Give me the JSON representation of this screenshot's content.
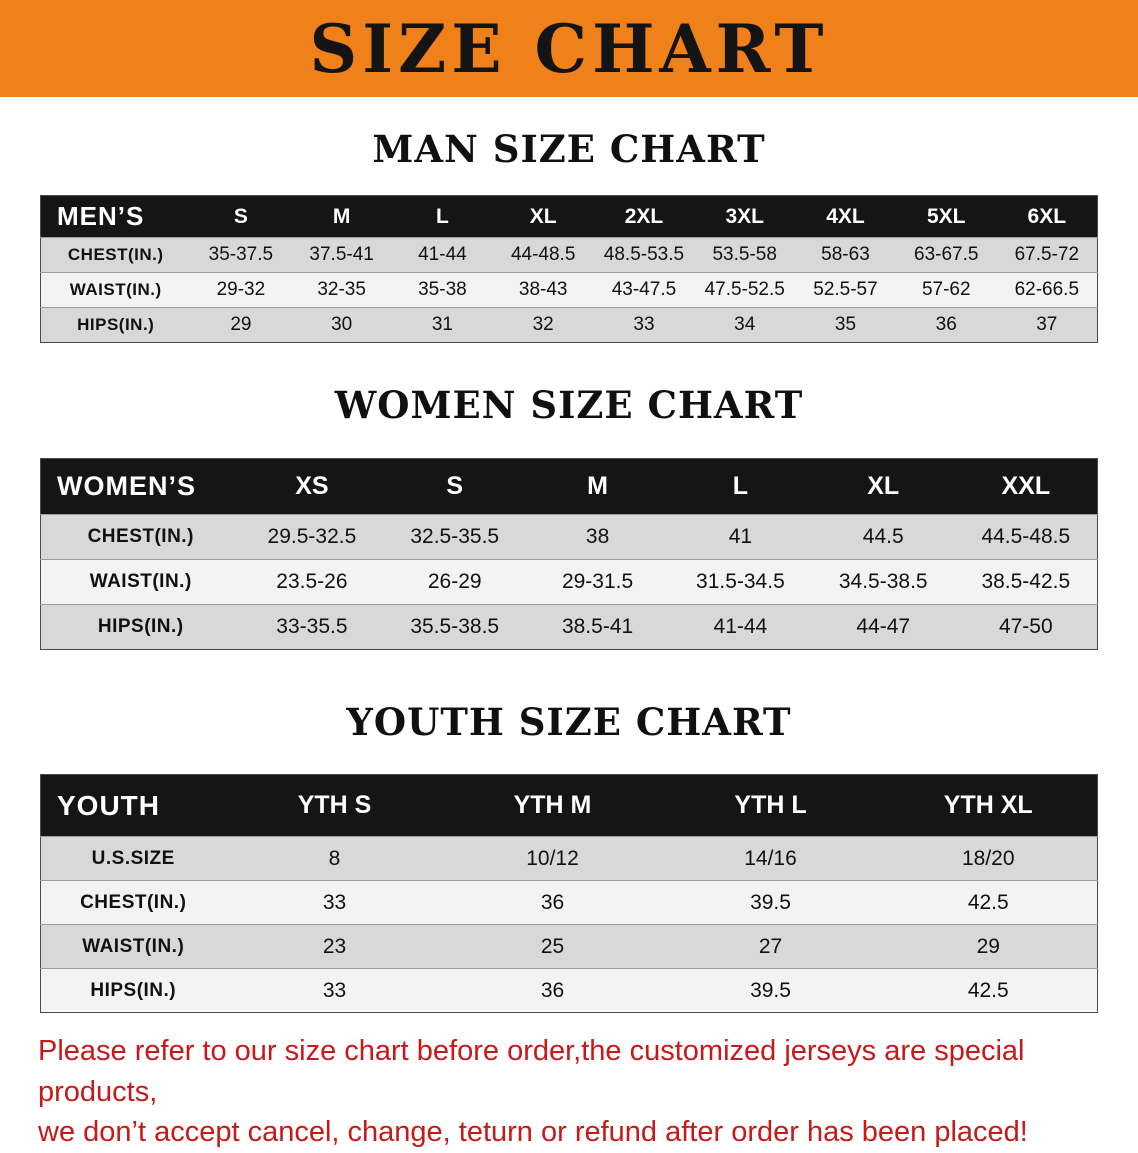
{
  "banner": {
    "title": "SIZE CHART"
  },
  "colors": {
    "banner_bg": "#F0801A",
    "banner_text": "#141414",
    "table_header_bg": "#151515",
    "table_header_text": "#FFFFFF",
    "row_shade": "#D8D8D8",
    "row_plain": "#F3F3F3",
    "disclaimer_text": "#C81919"
  },
  "sections": [
    {
      "heading": "MAN SIZE CHART",
      "table": {
        "corner_label": "MEN’S",
        "columns": [
          "S",
          "M",
          "L",
          "XL",
          "2XL",
          "3XL",
          "4XL",
          "5XL",
          "6XL"
        ],
        "rows": [
          {
            "label": "CHEST(IN.)",
            "values": [
              "35-37.5",
              "37.5-41",
              "41-44",
              "44-48.5",
              "48.5-53.5",
              "53.5-58",
              "58-63",
              "63-67.5",
              "67.5-72"
            ]
          },
          {
            "label": "WAIST(IN.)",
            "values": [
              "29-32",
              "32-35",
              "35-38",
              "38-43",
              "43-47.5",
              "47.5-52.5",
              "52.5-57",
              "57-62",
              "62-66.5"
            ]
          },
          {
            "label": "HIPS(IN.)",
            "values": [
              "29",
              "30",
              "31",
              "32",
              "33",
              "34",
              "35",
              "36",
              "37"
            ]
          }
        ]
      }
    },
    {
      "heading": "WOMEN SIZE CHART",
      "table": {
        "corner_label": "WOMEN’S",
        "columns": [
          "XS",
          "S",
          "M",
          "L",
          "XL",
          "XXL"
        ],
        "rows": [
          {
            "label": "CHEST(IN.)",
            "values": [
              "29.5-32.5",
              "32.5-35.5",
              "38",
              "41",
              "44.5",
              "44.5-48.5"
            ]
          },
          {
            "label": "WAIST(IN.)",
            "values": [
              "23.5-26",
              "26-29",
              "29-31.5",
              "31.5-34.5",
              "34.5-38.5",
              "38.5-42.5"
            ]
          },
          {
            "label": "HIPS(IN.)",
            "values": [
              "33-35.5",
              "35.5-38.5",
              "38.5-41",
              "41-44",
              "44-47",
              "47-50"
            ]
          }
        ]
      }
    },
    {
      "heading": "YOUTH SIZE CHART",
      "table": {
        "corner_label": "YOUTH",
        "columns": [
          "YTH S",
          "YTH M",
          "YTH L",
          "YTH XL"
        ],
        "rows": [
          {
            "label": "U.S.SIZE",
            "values": [
              "8",
              "10/12",
              "14/16",
              "18/20"
            ]
          },
          {
            "label": "CHEST(IN.)",
            "values": [
              "33",
              "36",
              "39.5",
              "42.5"
            ]
          },
          {
            "label": "WAIST(IN.)",
            "values": [
              "23",
              "25",
              "27",
              "29"
            ]
          },
          {
            "label": "HIPS(IN.)",
            "values": [
              "33",
              "36",
              "39.5",
              "42.5"
            ]
          }
        ]
      }
    }
  ],
  "disclaimer": {
    "lines": [
      "Please refer to our size chart before order,the customized jerseys are special products,",
      "we don’t accept cancel, change, teturn or refund after order has been placed!"
    ]
  }
}
